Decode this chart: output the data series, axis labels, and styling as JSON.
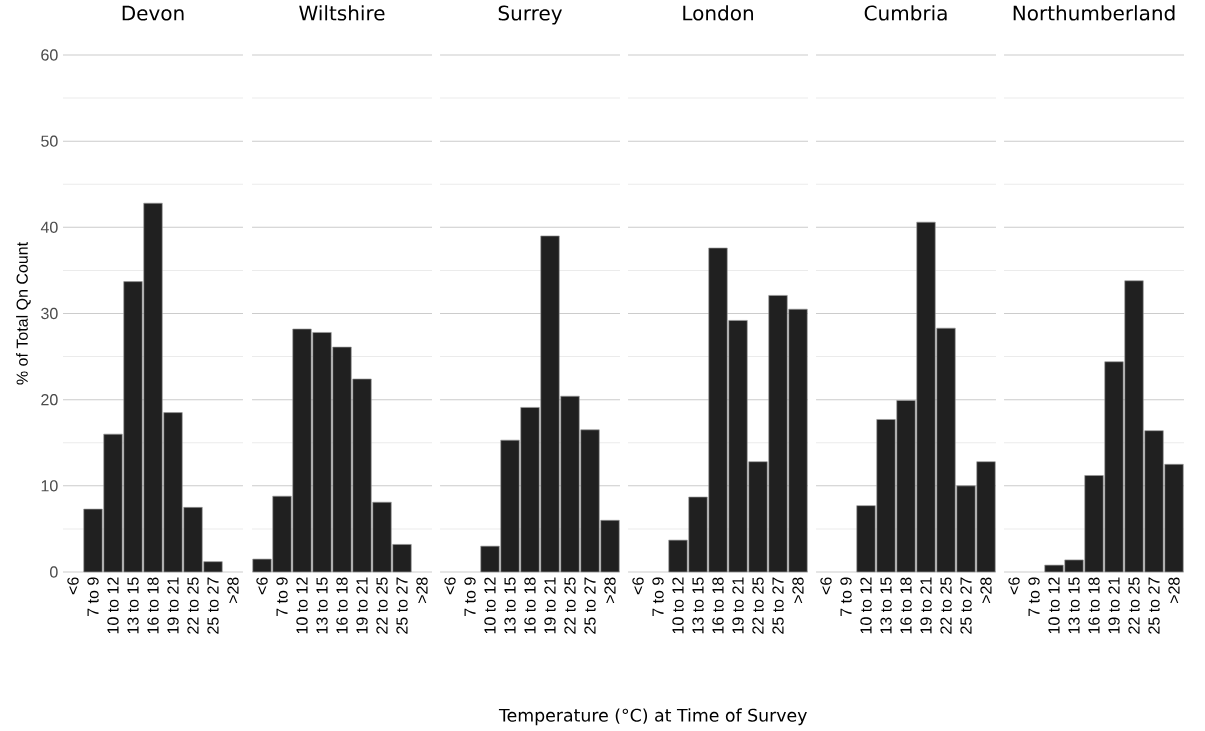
{
  "chart_data": [
    {
      "type": "bar",
      "title": "Devon",
      "ylabel": "% of Total Qn Count",
      "categories": [
        "<6",
        "7 to 9",
        "10 to 12",
        "13 to 15",
        "16 to 18",
        "19 to 21",
        "22 to 25",
        "25 to 27",
        ">28"
      ],
      "values": [
        null,
        7.3,
        16.0,
        33.7,
        42.8,
        18.5,
        7.5,
        1.2,
        null
      ],
      "color": "#202020",
      "ylim": [
        0,
        60
      ],
      "yticks": [
        0,
        {
          "value": 5,
          "label": null
        },
        10,
        {
          "value": 15,
          "label": null
        },
        20,
        {
          "value": 25,
          "label": null
        },
        30,
        {
          "value": 35,
          "label": null
        },
        40,
        {
          "value": 45,
          "label": null
        },
        50,
        {
          "value": 55,
          "label": null
        },
        60
      ],
      "grid": "y"
    },
    {
      "type": "bar",
      "title": "Wiltshire",
      "categories": [
        "<6",
        "7 to 9",
        "10 to 12",
        "13 to 15",
        "16 to 18",
        "19 to 21",
        "22 to 25",
        "25 to 27",
        ">28"
      ],
      "values": [
        1.5,
        8.8,
        28.2,
        27.8,
        26.1,
        22.4,
        8.1,
        3.2,
        null
      ],
      "color": "#202020",
      "ylim": [
        0,
        60
      ],
      "yticks": [
        0,
        {
          "value": 5,
          "label": null
        },
        10,
        {
          "value": 15,
          "label": null
        },
        20,
        {
          "value": 25,
          "label": null
        },
        30,
        {
          "value": 35,
          "label": null
        },
        40,
        {
          "value": 45,
          "label": null
        },
        50,
        {
          "value": 55,
          "label": null
        },
        60
      ],
      "grid": "y",
      "tick_labels": "x"
    },
    {
      "type": "bar",
      "title": "Surrey",
      "categories": [
        "<6",
        "7 to 9",
        "10 to 12",
        "13 to 15",
        "16 to 18",
        "19 to 21",
        "22 to 25",
        "25 to 27",
        ">28"
      ],
      "values": [
        null,
        null,
        3.0,
        15.3,
        19.1,
        39.0,
        20.4,
        16.5,
        6.0
      ],
      "color": "#202020",
      "ylim": [
        0,
        60
      ],
      "yticks": [
        0,
        {
          "value": 5,
          "label": null
        },
        10,
        {
          "value": 15,
          "label": null
        },
        20,
        {
          "value": 25,
          "label": null
        },
        30,
        {
          "value": 35,
          "label": null
        },
        40,
        {
          "value": 45,
          "label": null
        },
        50,
        {
          "value": 55,
          "label": null
        },
        60
      ],
      "grid": "y",
      "tick_labels": "x"
    },
    {
      "type": "bar",
      "title": "London",
      "xlabel": "Temperature (°C) at Time of Survey",
      "categories": [
        "<6",
        "7 to 9",
        "10 to 12",
        "13 to 15",
        "16 to 18",
        "19 to 21",
        "22 to 25",
        "25 to 27",
        ">28"
      ],
      "values": [
        null,
        null,
        3.7,
        8.7,
        37.6,
        29.2,
        12.8,
        32.1,
        30.5
      ],
      "color": "#202020",
      "ylim": [
        0,
        60
      ],
      "yticks": [
        0,
        {
          "value": 5,
          "label": null
        },
        10,
        {
          "value": 15,
          "label": null
        },
        20,
        {
          "value": 25,
          "label": null
        },
        30,
        {
          "value": 35,
          "label": null
        },
        40,
        {
          "value": 45,
          "label": null
        },
        50,
        {
          "value": 55,
          "label": null
        },
        60
      ],
      "grid": "y",
      "tick_labels": "x"
    },
    {
      "type": "bar",
      "title": "Cumbria",
      "categories": [
        "<6",
        "7 to 9",
        "10 to 12",
        "13 to 15",
        "16 to 18",
        "19 to 21",
        "22 to 25",
        "25 to 27",
        ">28"
      ],
      "values": [
        null,
        null,
        7.7,
        17.7,
        19.9,
        40.6,
        28.3,
        10.0,
        12.8
      ],
      "color": "#202020",
      "ylim": [
        0,
        60
      ],
      "yticks": [
        0,
        {
          "value": 5,
          "label": null
        },
        10,
        {
          "value": 15,
          "label": null
        },
        20,
        {
          "value": 25,
          "label": null
        },
        30,
        {
          "value": 35,
          "label": null
        },
        40,
        {
          "value": 45,
          "label": null
        },
        50,
        {
          "value": 55,
          "label": null
        },
        60
      ],
      "grid": "y",
      "tick_labels": "x"
    },
    {
      "type": "bar",
      "title": "Northumberland",
      "categories": [
        "<6",
        "7 to 9",
        "10 to 12",
        "13 to 15",
        "16 to 18",
        "19 to 21",
        "22 to 25",
        "25 to 27",
        ">28"
      ],
      "values": [
        null,
        null,
        0.8,
        1.4,
        11.2,
        24.4,
        33.8,
        16.4,
        12.5
      ],
      "color": "#202020",
      "ylim": [
        0,
        60
      ],
      "yticks": [
        0,
        {
          "value": 5,
          "label": null
        },
        10,
        {
          "value": 15,
          "label": null
        },
        20,
        {
          "value": 25,
          "label": null
        },
        30,
        {
          "value": 35,
          "label": null
        },
        40,
        {
          "value": 45,
          "label": null
        },
        50,
        {
          "value": 55,
          "label": null
        },
        60
      ],
      "grid": "y",
      "tick_labels": "x"
    }
  ]
}
